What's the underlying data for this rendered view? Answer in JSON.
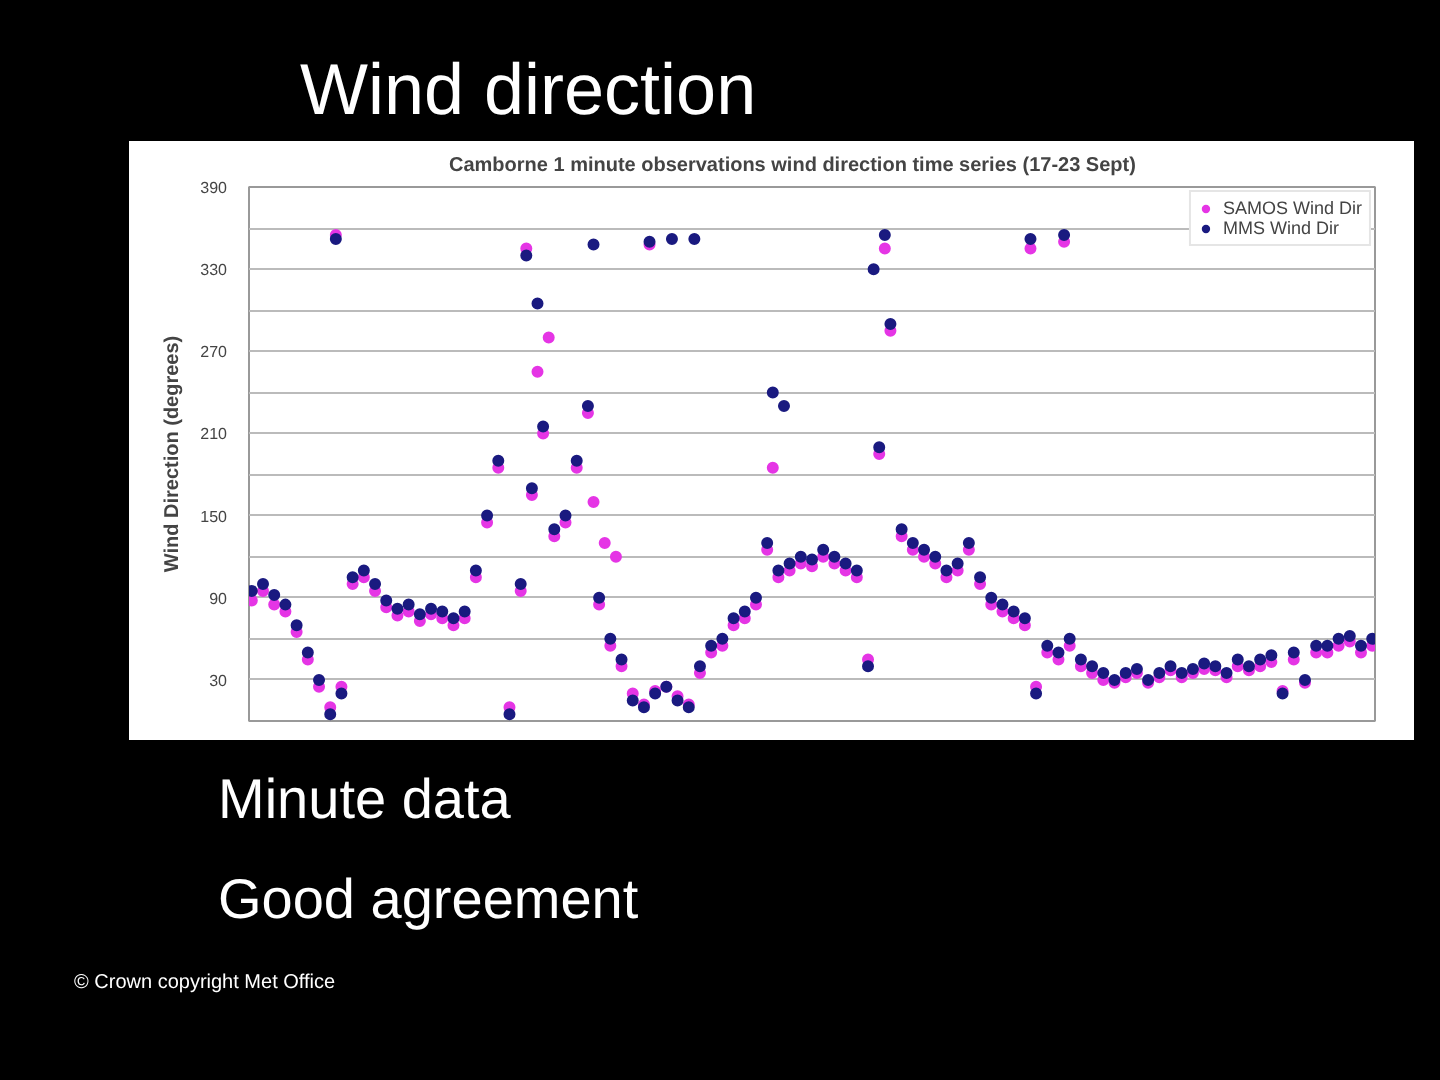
{
  "chart_data": {
    "type": "scatter",
    "title": "Wind direction",
    "subtitle": "Camborne 1 minute observations wind direction time series (17-23 Sept)",
    "ylabel": "Wind Direction (degrees)",
    "categories": [
      null,
      null,
      null,
      null,
      null,
      null,
      null,
      null,
      null,
      null,
      null,
      null,
      null,
      null,
      null,
      null,
      null,
      null,
      null,
      null,
      null,
      null,
      null,
      null,
      null,
      null,
      null,
      null,
      null,
      null,
      null,
      null,
      null,
      null,
      null,
      null,
      null,
      null,
      null,
      null,
      null,
      null,
      null,
      null,
      null,
      null,
      null,
      null,
      null,
      null,
      null,
      null,
      null,
      null,
      null,
      null,
      null,
      null,
      null,
      null,
      null,
      null,
      null,
      null,
      null,
      null,
      null,
      null,
      null,
      null,
      null,
      null,
      null,
      null,
      null,
      null,
      null,
      null,
      null,
      null,
      null,
      null,
      null,
      null,
      null,
      null,
      null,
      null,
      null,
      null,
      null,
      null,
      null,
      null,
      null,
      null,
      null,
      null,
      null,
      null,
      null,
      null,
      null,
      null,
      null,
      null,
      null,
      null,
      null,
      null,
      null,
      null,
      null,
      null,
      null,
      null,
      null,
      null,
      null,
      null,
      null,
      null,
      null,
      null,
      null,
      null,
      null,
      null,
      null,
      null,
      null,
      null,
      null,
      null,
      null,
      null,
      null,
      null,
      null,
      null,
      null,
      null,
      null,
      null,
      null,
      null,
      null,
      null,
      null,
      null,
      null,
      null,
      null,
      null,
      null,
      null,
      null,
      null,
      null,
      null,
      null,
      null,
      null,
      null,
      null,
      null,
      null,
      null,
      null,
      null,
      null,
      null,
      null,
      null,
      null,
      null,
      null,
      null,
      null,
      null,
      null,
      null,
      null,
      null,
      null,
      null,
      null,
      null,
      null,
      null,
      null,
      null,
      null,
      null,
      null,
      null,
      null,
      null,
      null,
      null,
      null
    ],
    "ylim": [
      0,
      390
    ],
    "yticks": [
      30,
      {
        "value": 60,
        "label": null
      },
      90,
      {
        "value": 120,
        "label": null
      },
      150,
      {
        "value": 180,
        "label": null
      },
      210,
      {
        "value": 240,
        "label": null
      },
      270,
      {
        "value": 300,
        "label": null
      },
      330,
      {
        "value": 360,
        "label": null
      },
      390
    ],
    "tick_labels": "y",
    "grid": "y",
    "legend": "top right",
    "marker": "circle",
    "annotations": [
      "Minute data",
      "Good agreement",
      "© Crown copyright   Met Office"
    ],
    "series": [
      {
        "name": "SAMOS Wind Dir",
        "color": "#e535e5",
        "values": [
          88,
          null,
          95,
          null,
          85,
          null,
          80,
          null,
          65,
          null,
          45,
          null,
          25,
          null,
          10,
          355,
          25,
          null,
          100,
          null,
          105,
          null,
          95,
          null,
          83,
          null,
          77,
          null,
          80,
          null,
          73,
          null,
          78,
          null,
          75,
          null,
          70,
          null,
          75,
          null,
          105,
          null,
          145,
          null,
          185,
          null,
          10,
          null,
          95,
          345,
          165,
          255,
          210,
          280,
          135,
          null,
          145,
          null,
          185,
          null,
          225,
          160,
          85,
          130,
          55,
          120,
          40,
          null,
          20,
          null,
          12,
          348,
          22,
          null,
          25,
          null,
          18,
          null,
          12,
          null,
          35,
          null,
          50,
          null,
          55,
          null,
          70,
          null,
          75,
          null,
          85,
          null,
          125,
          185,
          105,
          null,
          110,
          null,
          115,
          null,
          113,
          null,
          120,
          null,
          115,
          null,
          110,
          null,
          105,
          null,
          45,
          null,
          195,
          345,
          285,
          null,
          135,
          null,
          125,
          null,
          120,
          null,
          115,
          null,
          105,
          null,
          110,
          null,
          125,
          null,
          100,
          null,
          85,
          null,
          80,
          null,
          75,
          null,
          70,
          345,
          25,
          null,
          50,
          null,
          45,
          350,
          55,
          null,
          40,
          null,
          35,
          null,
          30,
          null,
          28,
          null,
          32,
          null,
          35,
          null,
          28,
          null,
          32,
          null,
          37,
          null,
          32,
          null,
          35,
          null,
          38,
          null,
          37,
          null,
          32,
          null,
          40,
          null,
          37,
          null,
          40,
          null,
          43,
          null,
          22,
          null,
          45,
          null,
          28,
          null,
          50,
          null,
          50,
          null,
          55,
          null,
          58,
          null,
          50,
          null,
          55
        ]
      },
      {
        "name": "MMS Wind Dir",
        "color": "#1a1a80",
        "values": [
          95,
          null,
          100,
          null,
          92,
          null,
          85,
          null,
          70,
          null,
          50,
          null,
          30,
          null,
          5,
          352,
          20,
          null,
          105,
          null,
          110,
          null,
          100,
          null,
          88,
          null,
          82,
          null,
          85,
          null,
          78,
          null,
          82,
          null,
          80,
          null,
          75,
          null,
          80,
          null,
          110,
          null,
          150,
          null,
          190,
          null,
          5,
          null,
          100,
          340,
          170,
          305,
          215,
          null,
          140,
          null,
          150,
          null,
          190,
          null,
          230,
          348,
          90,
          null,
          60,
          null,
          45,
          null,
          15,
          null,
          10,
          350,
          20,
          null,
          25,
          352,
          15,
          null,
          10,
          352,
          40,
          null,
          55,
          null,
          60,
          null,
          75,
          null,
          80,
          null,
          90,
          null,
          130,
          240,
          110,
          230,
          115,
          null,
          120,
          null,
          118,
          null,
          125,
          null,
          120,
          null,
          115,
          null,
          110,
          null,
          40,
          330,
          200,
          355,
          290,
          null,
          140,
          null,
          130,
          null,
          125,
          null,
          120,
          null,
          110,
          null,
          115,
          null,
          130,
          null,
          105,
          null,
          90,
          null,
          85,
          null,
          80,
          null,
          75,
          352,
          20,
          null,
          55,
          null,
          50,
          355,
          60,
          null,
          45,
          null,
          40,
          null,
          35,
          null,
          30,
          null,
          35,
          null,
          38,
          null,
          30,
          null,
          35,
          null,
          40,
          null,
          35,
          null,
          38,
          null,
          42,
          null,
          40,
          null,
          35,
          null,
          45,
          null,
          40,
          null,
          45,
          null,
          48,
          null,
          20,
          null,
          50,
          null,
          30,
          null,
          55,
          null,
          55,
          null,
          60,
          null,
          62,
          null,
          55,
          null,
          60
        ]
      }
    ]
  }
}
